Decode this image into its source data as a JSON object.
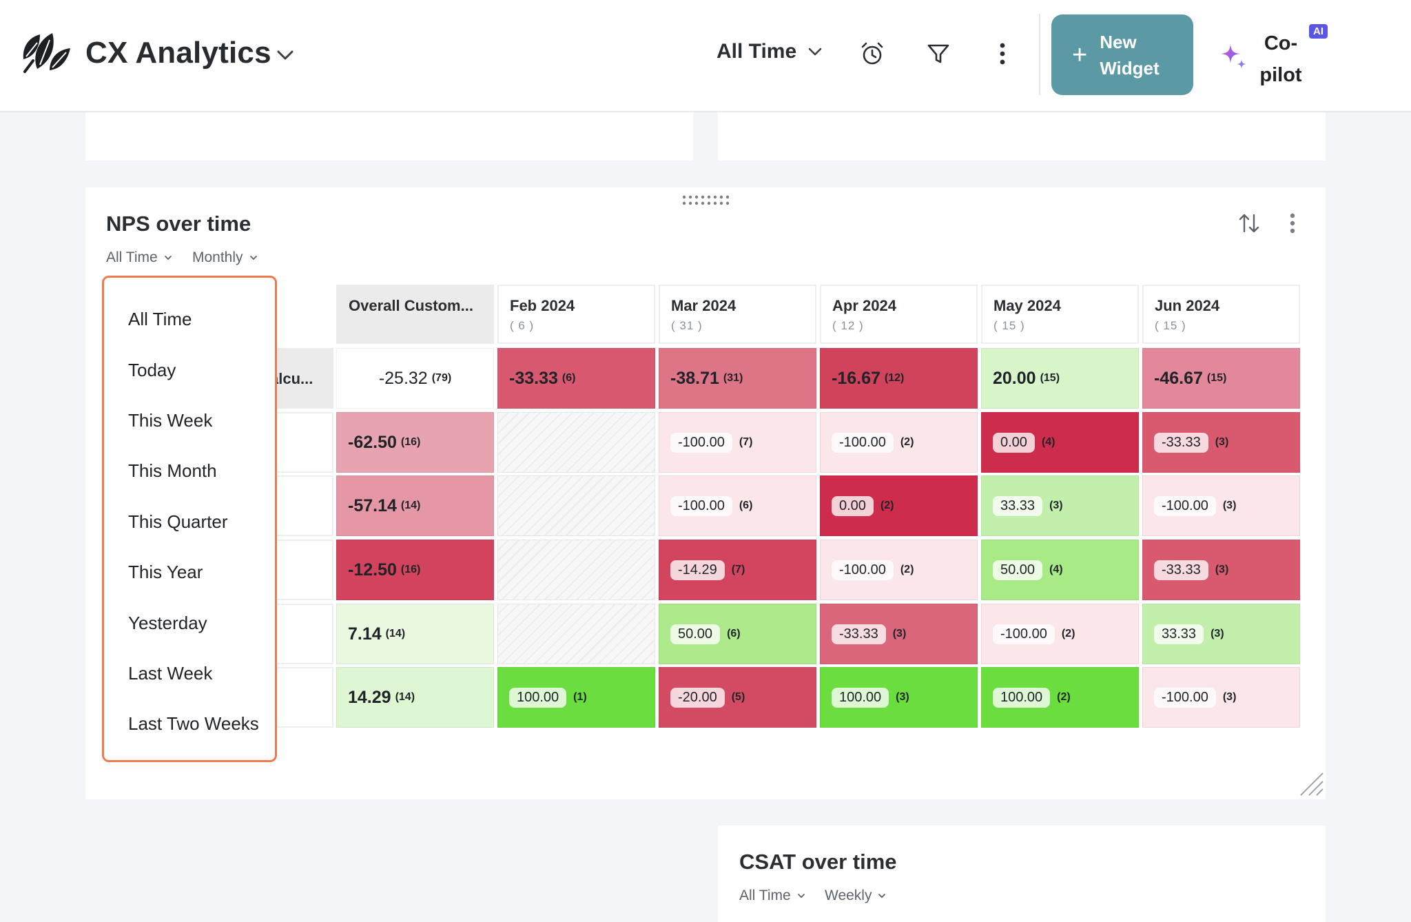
{
  "header": {
    "app_title": "CX Analytics",
    "time_filter": "All Time",
    "new_widget_label": "New Widget",
    "copilot_label": "Co-pilot",
    "ai_badge": "AI"
  },
  "nps_widget": {
    "title": "NPS over time",
    "filter_time": "All Time",
    "filter_granularity": "Monthly",
    "row_label_fragment": "alcu...",
    "columns": [
      {
        "label": "Overall Custom...",
        "count": ""
      },
      {
        "label": "Feb 2024",
        "count": "( 6 )"
      },
      {
        "label": "Mar 2024",
        "count": "( 31 )"
      },
      {
        "label": "Apr 2024",
        "count": "( 12 )"
      },
      {
        "label": "May 2024",
        "count": "( 15 )"
      },
      {
        "label": "Jun 2024",
        "count": "( 15 )"
      }
    ],
    "rows": [
      [
        {
          "v": "-25.32",
          "n": "(79)",
          "bg": "#ffffff",
          "style": "plain"
        },
        {
          "v": "-33.33",
          "n": "(6)",
          "bg": "#d8596f",
          "style": "bold"
        },
        {
          "v": "-38.71",
          "n": "(31)",
          "bg": "#de7587",
          "style": "bold"
        },
        {
          "v": "-16.67",
          "n": "(12)",
          "bg": "#d1425b",
          "style": "bold"
        },
        {
          "v": "20.00",
          "n": "(15)",
          "bg": "#d8f5c9",
          "style": "bold"
        },
        {
          "v": "-46.67",
          "n": "(15)",
          "bg": "#e3879a",
          "style": "bold"
        }
      ],
      [
        {
          "v": "-62.50",
          "n": "(16)",
          "bg": "#e8a3b1",
          "style": "bold"
        },
        {
          "v": "",
          "n": "",
          "bg": "hatch",
          "style": "empty"
        },
        {
          "v": "-100.00",
          "n": "(7)",
          "bg": "#fbe6ea",
          "style": "pill"
        },
        {
          "v": "-100.00",
          "n": "(2)",
          "bg": "#fbe6ea",
          "style": "pill"
        },
        {
          "v": "0.00",
          "n": "(4)",
          "bg": "#ce2c4c",
          "style": "pill"
        },
        {
          "v": "-33.33",
          "n": "(3)",
          "bg": "#d9596f",
          "style": "pill"
        }
      ],
      [
        {
          "v": "-57.14",
          "n": "(14)",
          "bg": "#e597a6",
          "style": "bold"
        },
        {
          "v": "",
          "n": "",
          "bg": "hatch",
          "style": "empty"
        },
        {
          "v": "-100.00",
          "n": "(6)",
          "bg": "#fbe6ea",
          "style": "pill"
        },
        {
          "v": "0.00",
          "n": "(2)",
          "bg": "#ce2c4c",
          "style": "pill"
        },
        {
          "v": "33.33",
          "n": "(3)",
          "bg": "#c2f0ac",
          "style": "pill"
        },
        {
          "v": "-100.00",
          "n": "(3)",
          "bg": "#fbe6ea",
          "style": "pill"
        }
      ],
      [
        {
          "v": "-12.50",
          "n": "(16)",
          "bg": "#d3435d",
          "style": "bold"
        },
        {
          "v": "",
          "n": "",
          "bg": "hatch",
          "style": "empty"
        },
        {
          "v": "-14.29",
          "n": "(7)",
          "bg": "#d3455f",
          "style": "pill"
        },
        {
          "v": "-100.00",
          "n": "(2)",
          "bg": "#fbe6ea",
          "style": "pill"
        },
        {
          "v": "50.00",
          "n": "(4)",
          "bg": "#a8ea86",
          "style": "pill"
        },
        {
          "v": "-33.33",
          "n": "(3)",
          "bg": "#d9596f",
          "style": "pill"
        }
      ],
      [
        {
          "v": "7.14",
          "n": "(14)",
          "bg": "#e8f9df",
          "style": "bold"
        },
        {
          "v": "",
          "n": "",
          "bg": "hatch",
          "style": "empty"
        },
        {
          "v": "50.00",
          "n": "(6)",
          "bg": "#acea8b",
          "style": "pill"
        },
        {
          "v": "-33.33",
          "n": "(3)",
          "bg": "#d9667b",
          "style": "pill"
        },
        {
          "v": "-100.00",
          "n": "(2)",
          "bg": "#fbe6ea",
          "style": "pill"
        },
        {
          "v": "33.33",
          "n": "(3)",
          "bg": "#c2f0ac",
          "style": "pill"
        }
      ],
      [
        {
          "v": "14.29",
          "n": "(14)",
          "bg": "#def6d2",
          "style": "bold"
        },
        {
          "v": "100.00",
          "n": "(1)",
          "bg": "#6bdd3f",
          "style": "pill"
        },
        {
          "v": "-20.00",
          "n": "(5)",
          "bg": "#d34a63",
          "style": "pill"
        },
        {
          "v": "100.00",
          "n": "(3)",
          "bg": "#6bdd3f",
          "style": "pill"
        },
        {
          "v": "100.00",
          "n": "(2)",
          "bg": "#6bdd3f",
          "style": "pill"
        },
        {
          "v": "-100.00",
          "n": "(3)",
          "bg": "#fbe6ea",
          "style": "pill"
        }
      ]
    ]
  },
  "time_dropdown": {
    "options": [
      "All Time",
      "Today",
      "This Week",
      "This Month",
      "This Quarter",
      "This Year",
      "Yesterday",
      "Last Week",
      "Last Two Weeks"
    ]
  },
  "csat_widget": {
    "title": "CSAT over time",
    "filter_time": "All Time",
    "filter_granularity": "Weekly"
  }
}
